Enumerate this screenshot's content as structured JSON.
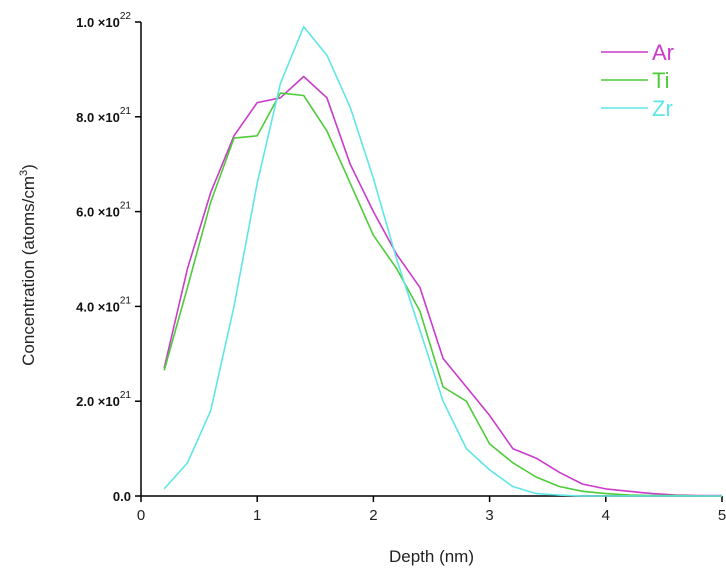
{
  "chart_data": {
    "type": "line",
    "title": "",
    "xlabel": "Depth (nm)",
    "ylabel": "Concentration (atoms/cm³)",
    "xlim": [
      0,
      5
    ],
    "ylim": [
      0,
      1e+22
    ],
    "grid": false,
    "legend_position": "top-right",
    "x_ticks": [
      {
        "value": 0,
        "label": "0"
      },
      {
        "value": 1,
        "label": "1"
      },
      {
        "value": 2,
        "label": "2"
      },
      {
        "value": 3,
        "label": "3"
      },
      {
        "value": 4,
        "label": "4"
      },
      {
        "value": 5,
        "label": "5"
      }
    ],
    "y_ticks": [
      {
        "value": 0,
        "mantissa": "0.0",
        "exponent": ""
      },
      {
        "value": 2e+21,
        "mantissa": "2.0 ×10",
        "exponent": "21"
      },
      {
        "value": 4e+21,
        "mantissa": "4.0 ×10",
        "exponent": "21"
      },
      {
        "value": 6e+21,
        "mantissa": "6.0 ×10",
        "exponent": "21"
      },
      {
        "value": 8e+21,
        "mantissa": "8.0 ×10",
        "exponent": "21"
      },
      {
        "value": 1e+22,
        "mantissa": "1.0 ×10",
        "exponent": "22"
      }
    ],
    "series": [
      {
        "name": "Ar",
        "color": "#c93bc9",
        "x": [
          0.2,
          0.4,
          0.6,
          0.8,
          1.0,
          1.2,
          1.4,
          1.6,
          1.8,
          2.0,
          2.2,
          2.4,
          2.6,
          2.8,
          3.0,
          3.2,
          3.4,
          3.6,
          3.8,
          4.0,
          4.2,
          4.4,
          4.6,
          4.8,
          5.0
        ],
        "values": [
          2.7e+21,
          4.8e+21,
          6.4e+21,
          7.6e+21,
          8.3e+21,
          8.4e+21,
          8.85e+21,
          8.4e+21,
          7e+21,
          6e+21,
          5.1e+21,
          4.4e+21,
          2.9e+21,
          2.3e+21,
          1.7e+21,
          1e+21,
          8e+20,
          5e+20,
          2.5e+20,
          1.5e+20,
          1e+20,
          5e+19,
          2e+19,
          1e+19,
          1e+19
        ]
      },
      {
        "name": "Ti",
        "color": "#4fcb3a",
        "x": [
          0.2,
          0.4,
          0.6,
          0.8,
          1.0,
          1.2,
          1.4,
          1.6,
          1.8,
          2.0,
          2.2,
          2.4,
          2.6,
          2.8,
          3.0,
          3.2,
          3.4,
          3.6,
          3.8,
          4.0,
          4.2,
          4.4,
          4.6,
          4.8,
          5.0
        ],
        "values": [
          2.65e+21,
          4.4e+21,
          6.2e+21,
          7.55e+21,
          7.6e+21,
          8.5e+21,
          8.45e+21,
          7.7e+21,
          6.6e+21,
          5.5e+21,
          4.8e+21,
          3.9e+21,
          2.3e+21,
          2e+21,
          1.1e+21,
          7e+20,
          4e+20,
          2e+20,
          1e+20,
          5e+19,
          2e+19,
          1e+19,
          1e+19,
          0.0,
          0.0
        ]
      },
      {
        "name": "Zr",
        "color": "#5fe6e6",
        "x": [
          0.2,
          0.4,
          0.6,
          0.8,
          1.0,
          1.2,
          1.4,
          1.6,
          1.8,
          2.0,
          2.2,
          2.4,
          2.6,
          2.8,
          3.0,
          3.2,
          3.4,
          3.6,
          3.8,
          4.0,
          4.2,
          4.4,
          4.6,
          4.8,
          5.0
        ],
        "values": [
          1.5e+20,
          7e+20,
          1.8e+21,
          4e+21,
          6.6e+21,
          8.7e+21,
          9.9e+21,
          9.3e+21,
          8.2e+21,
          6.7e+21,
          5e+21,
          3.5e+21,
          2e+21,
          1e+21,
          5.5e+20,
          2e+20,
          5e+19,
          2e+19,
          0.0,
          0.0,
          0.0,
          0.0,
          0.0,
          0.0,
          0.0
        ]
      }
    ]
  }
}
